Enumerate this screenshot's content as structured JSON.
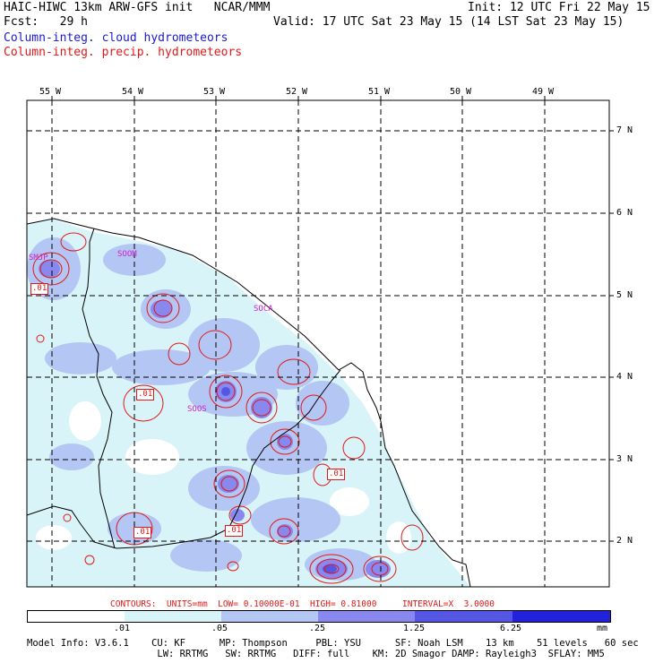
{
  "header": {
    "title_left": "HAIC-HIWC 13km ARW-GFS init   NCAR/MMM",
    "init": "Init: 12 UTC Fri 22 May 15",
    "fcst": "Fcst:   29 h",
    "valid": "Valid: 17 UTC Sat 23 May 15 (14 LST Sat 23 May 15)",
    "field_cloud": "Column-integ. cloud hydrometeors",
    "field_precip": "Column-integ. precip. hydrometeors"
  },
  "map": {
    "longitude_labels": [
      "55 W",
      "54 W",
      "53 W",
      "52 W",
      "51 W",
      "50 W",
      "49 W"
    ],
    "latitude_labels": [
      "7 N",
      "6 N",
      "5 N",
      "4 N",
      "3 N",
      "2 N"
    ],
    "stations": [
      "SOOM",
      "SOCA",
      "SOOS",
      "SMJP"
    ],
    "contour_labels": [
      ".01",
      ".01",
      ".01",
      ".01",
      ".01"
    ]
  },
  "contours_info": "CONTOURS:  UNITS=mm  LOW= 0.10000E-01  HIGH= 0.81000     INTERVAL=X  3.0000",
  "colorbar": {
    "ticks": [
      ".01",
      ".05",
      ".25",
      "1.25",
      "6.25",
      "mm"
    ],
    "colors": [
      "#ffffff",
      "#d8f4f8",
      "#b4c6f4",
      "#8888ee",
      "#5656e4",
      "#2222d8"
    ]
  },
  "model_info": {
    "line1": "Model Info: V3.6.1    CU: KF      MP: Thompson     PBL: YSU      SF: Noah LSM    13 km    51 levels   60 sec",
    "line2": "                       LW: RRTMG   SW: RRTMG   DIFF: full    KM: 2D Smagor DAMP: Rayleigh3  SFLAY: MM5"
  }
}
